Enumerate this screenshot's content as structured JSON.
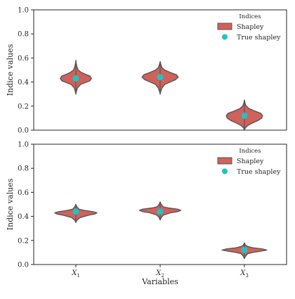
{
  "chart_data": [
    {
      "type": "violin",
      "title": "",
      "xlabel": "",
      "ylabel": "Indice values",
      "ylim": [
        0,
        1
      ],
      "yticks": [
        "0.0",
        "0.2",
        "0.4",
        "0.6",
        "0.8",
        "1.0"
      ],
      "categories": [
        "X1",
        "X2",
        "X3"
      ],
      "legend": {
        "title": "Indices",
        "placement": "top-right",
        "entries": [
          {
            "label": "Shapley",
            "kind": "violin-patch"
          },
          {
            "label": "True shapley",
            "kind": "marker"
          }
        ]
      },
      "violins": [
        {
          "category": "X1",
          "min": 0.3,
          "max": 0.58,
          "median": 0.43,
          "q1": 0.41,
          "q3": 0.45,
          "max_half_width": 0.37,
          "profile": [
            [
              0.3,
              0.0
            ],
            [
              0.32,
              0.03
            ],
            [
              0.35,
              0.1
            ],
            [
              0.38,
              0.3
            ],
            [
              0.4,
              0.7
            ],
            [
              0.41,
              0.9
            ],
            [
              0.43,
              1.0
            ],
            [
              0.45,
              0.9
            ],
            [
              0.46,
              0.7
            ],
            [
              0.48,
              0.35
            ],
            [
              0.5,
              0.15
            ],
            [
              0.53,
              0.06
            ],
            [
              0.56,
              0.02
            ],
            [
              0.58,
              0.0
            ]
          ]
        },
        {
          "category": "X2",
          "min": 0.3,
          "max": 0.57,
          "median": 0.44,
          "q1": 0.42,
          "q3": 0.46,
          "max_half_width": 0.43,
          "profile": [
            [
              0.3,
              0.0
            ],
            [
              0.32,
              0.03
            ],
            [
              0.35,
              0.1
            ],
            [
              0.38,
              0.25
            ],
            [
              0.4,
              0.55
            ],
            [
              0.42,
              0.85
            ],
            [
              0.44,
              1.0
            ],
            [
              0.46,
              0.9
            ],
            [
              0.48,
              0.55
            ],
            [
              0.5,
              0.25
            ],
            [
              0.52,
              0.1
            ],
            [
              0.54,
              0.05
            ],
            [
              0.57,
              0.0
            ]
          ]
        },
        {
          "category": "X3",
          "min": 0.0,
          "max": 0.25,
          "median": 0.12,
          "q1": 0.1,
          "q3": 0.14,
          "max_half_width": 0.43,
          "profile": [
            [
              0.0,
              0.0
            ],
            [
              0.02,
              0.05
            ],
            [
              0.04,
              0.2
            ],
            [
              0.06,
              0.45
            ],
            [
              0.08,
              0.75
            ],
            [
              0.1,
              0.95
            ],
            [
              0.12,
              1.0
            ],
            [
              0.14,
              0.9
            ],
            [
              0.16,
              0.55
            ],
            [
              0.18,
              0.25
            ],
            [
              0.2,
              0.1
            ],
            [
              0.22,
              0.04
            ],
            [
              0.25,
              0.0
            ]
          ]
        }
      ],
      "true_values": [
        {
          "category": "X1",
          "value": 0.43
        },
        {
          "category": "X2",
          "value": 0.44
        },
        {
          "category": "X3",
          "value": 0.12
        }
      ]
    },
    {
      "type": "violin",
      "title": "",
      "xlabel": "Variables",
      "ylabel": "Indice values",
      "ylim": [
        0,
        1
      ],
      "yticks": [
        "0.0",
        "0.2",
        "0.4",
        "0.6",
        "0.8",
        "1.0"
      ],
      "categories": [
        "X1",
        "X2",
        "X3"
      ],
      "legend": {
        "title": "Indices",
        "placement": "top-right",
        "entries": [
          {
            "label": "Shapley",
            "kind": "violin-patch"
          },
          {
            "label": "True shapley",
            "kind": "marker"
          }
        ]
      },
      "violins": [
        {
          "category": "X1",
          "min": 0.35,
          "max": 0.5,
          "median": 0.43,
          "q1": 0.42,
          "q3": 0.44,
          "max_half_width": 0.5,
          "profile": [
            [
              0.35,
              0.0
            ],
            [
              0.37,
              0.06
            ],
            [
              0.39,
              0.2
            ],
            [
              0.41,
              0.6
            ],
            [
              0.42,
              0.9
            ],
            [
              0.43,
              1.0
            ],
            [
              0.44,
              0.8
            ],
            [
              0.45,
              0.4
            ],
            [
              0.46,
              0.15
            ],
            [
              0.48,
              0.05
            ],
            [
              0.5,
              0.0
            ]
          ]
        },
        {
          "category": "X2",
          "min": 0.37,
          "max": 0.52,
          "median": 0.45,
          "q1": 0.44,
          "q3": 0.46,
          "max_half_width": 0.49,
          "profile": [
            [
              0.37,
              0.0
            ],
            [
              0.39,
              0.05
            ],
            [
              0.41,
              0.15
            ],
            [
              0.43,
              0.5
            ],
            [
              0.44,
              0.85
            ],
            [
              0.45,
              1.0
            ],
            [
              0.46,
              0.85
            ],
            [
              0.47,
              0.4
            ],
            [
              0.48,
              0.15
            ],
            [
              0.5,
              0.05
            ],
            [
              0.52,
              0.0
            ]
          ]
        },
        {
          "category": "X3",
          "min": 0.05,
          "max": 0.18,
          "median": 0.12,
          "q1": 0.11,
          "q3": 0.13,
          "max_half_width": 0.53,
          "profile": [
            [
              0.05,
              0.0
            ],
            [
              0.07,
              0.05
            ],
            [
              0.09,
              0.15
            ],
            [
              0.1,
              0.35
            ],
            [
              0.11,
              0.7
            ],
            [
              0.12,
              1.0
            ],
            [
              0.13,
              0.8
            ],
            [
              0.14,
              0.35
            ],
            [
              0.15,
              0.15
            ],
            [
              0.16,
              0.05
            ],
            [
              0.18,
              0.0
            ]
          ]
        }
      ],
      "true_values": [
        {
          "category": "X1",
          "value": 0.44
        },
        {
          "category": "X2",
          "value": 0.44
        },
        {
          "category": "X3",
          "value": 0.12
        }
      ]
    }
  ],
  "colors": {
    "violin_fill": "#d0615b",
    "violin_edge": "#575757",
    "marker": "#1ec4c4",
    "axis": "#262626",
    "text": "#262626"
  }
}
